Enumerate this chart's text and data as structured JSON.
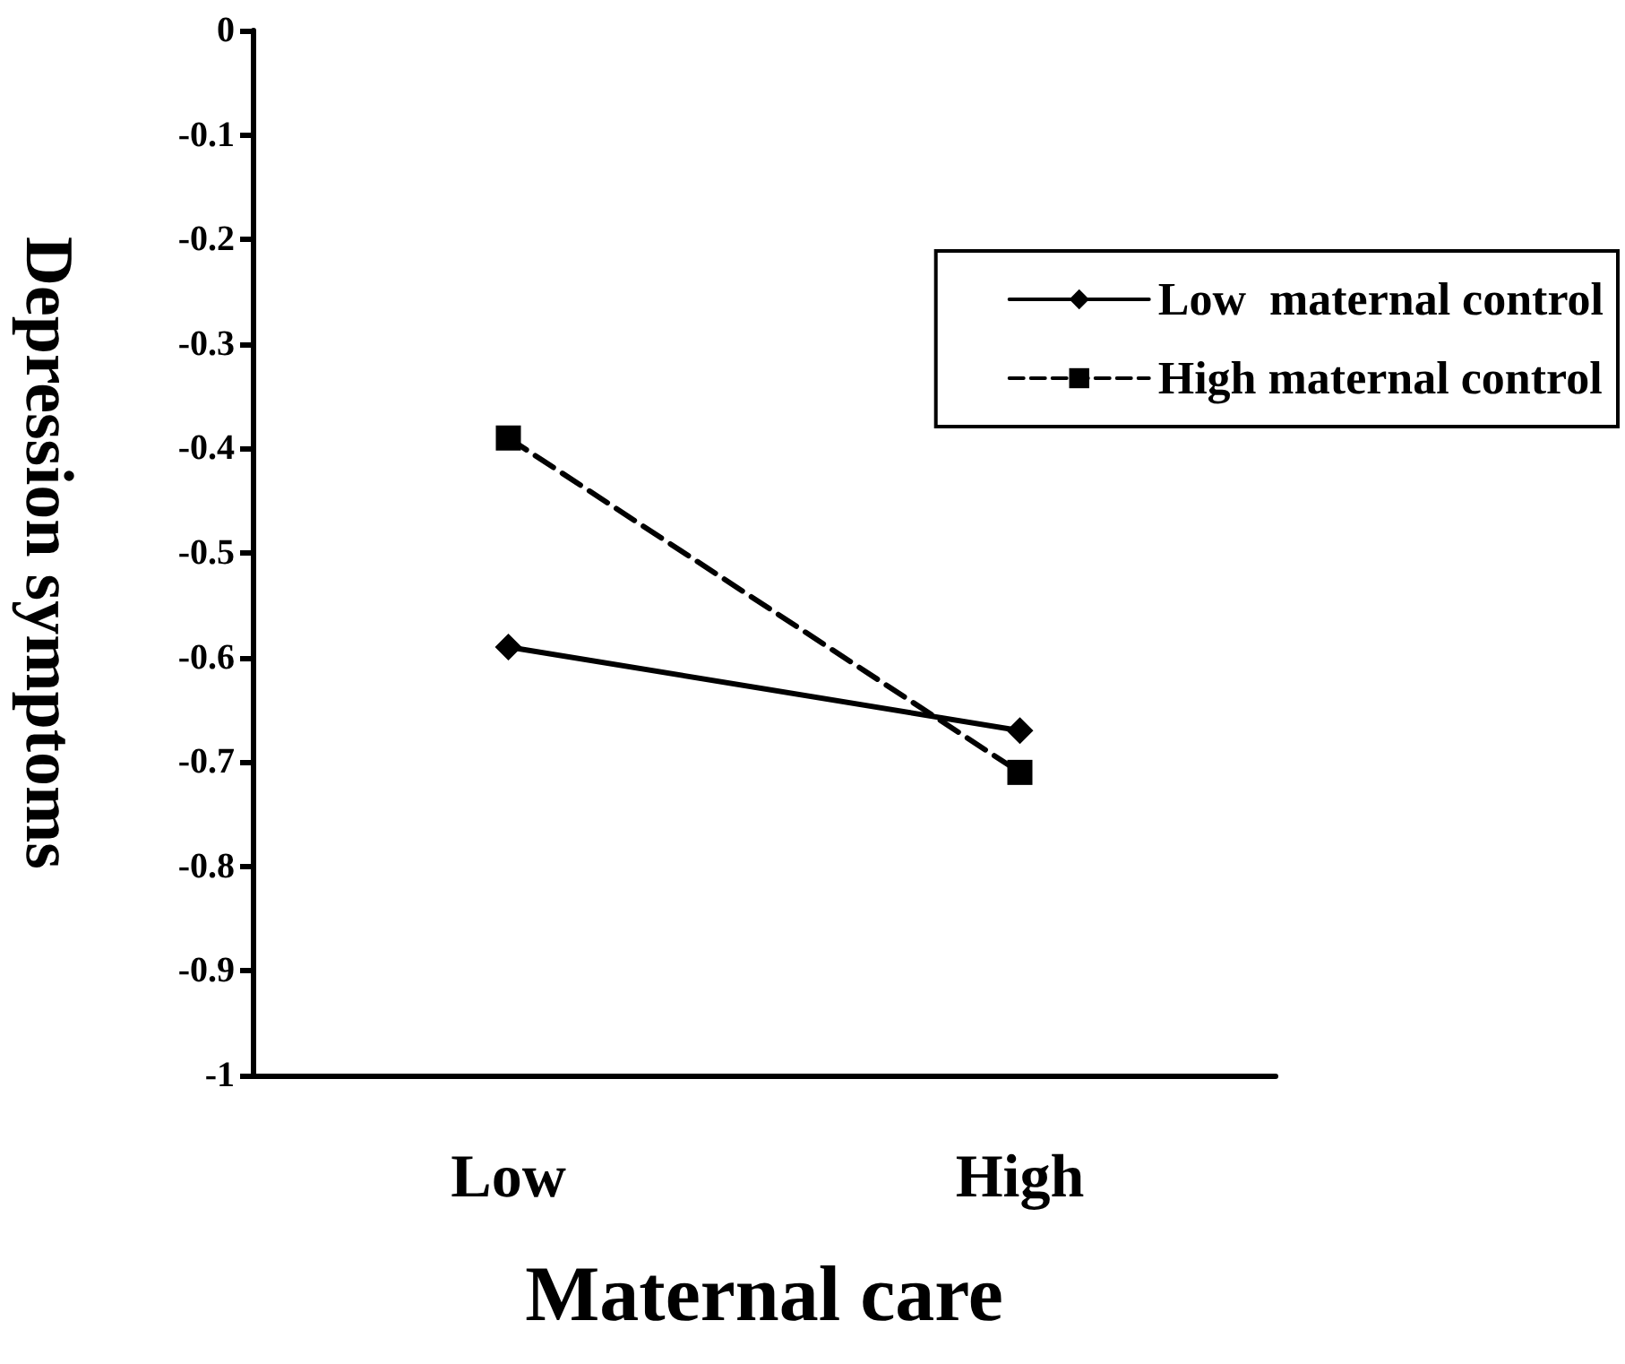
{
  "chart_data": {
    "type": "line",
    "xlabel": "Maternal care",
    "ylabel": "Depression symptoms",
    "categories": [
      "Low",
      "High"
    ],
    "series": [
      {
        "name": "Low  maternal control",
        "color": "#000000",
        "values": [
          -0.59,
          -0.67
        ],
        "marker": "diamond",
        "line_style": "solid"
      },
      {
        "name": "High maternal control",
        "color": "#000000",
        "values": [
          -0.39,
          -0.71
        ],
        "marker": "square",
        "line_style": "dashed"
      }
    ],
    "ylim": [
      -1,
      0
    ],
    "yticks": [
      -1,
      -0.9,
      -0.8,
      -0.7,
      -0.6,
      -0.5,
      -0.4,
      -0.3,
      -0.2,
      -0.1,
      0
    ],
    "grid": false,
    "legend": "top right"
  }
}
